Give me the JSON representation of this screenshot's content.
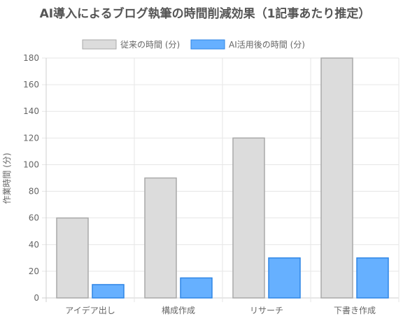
{
  "chart_data": {
    "type": "bar",
    "title": "AI導入によるブログ執筆の時間削減効果（1記事あたり推定）",
    "categories": [
      "アイデア出し",
      "構成作成",
      "リサーチ",
      "下書き作成"
    ],
    "series": [
      {
        "name": "従来の時間 (分)",
        "values": [
          60,
          90,
          120,
          180
        ],
        "fill": "#dcdcdc",
        "stroke": "#a9a9a9"
      },
      {
        "name": "AI活用後の時間 (分)",
        "values": [
          10,
          15,
          30,
          30
        ],
        "fill": "#66b0ff",
        "stroke": "#2f86e6"
      }
    ],
    "xlabel": "",
    "ylabel": "作業時間 (分)",
    "ylim": [
      0,
      180
    ],
    "yticks": [
      0,
      20,
      40,
      60,
      80,
      100,
      120,
      140,
      160,
      180
    ],
    "grid": true,
    "legend": "top-center"
  }
}
